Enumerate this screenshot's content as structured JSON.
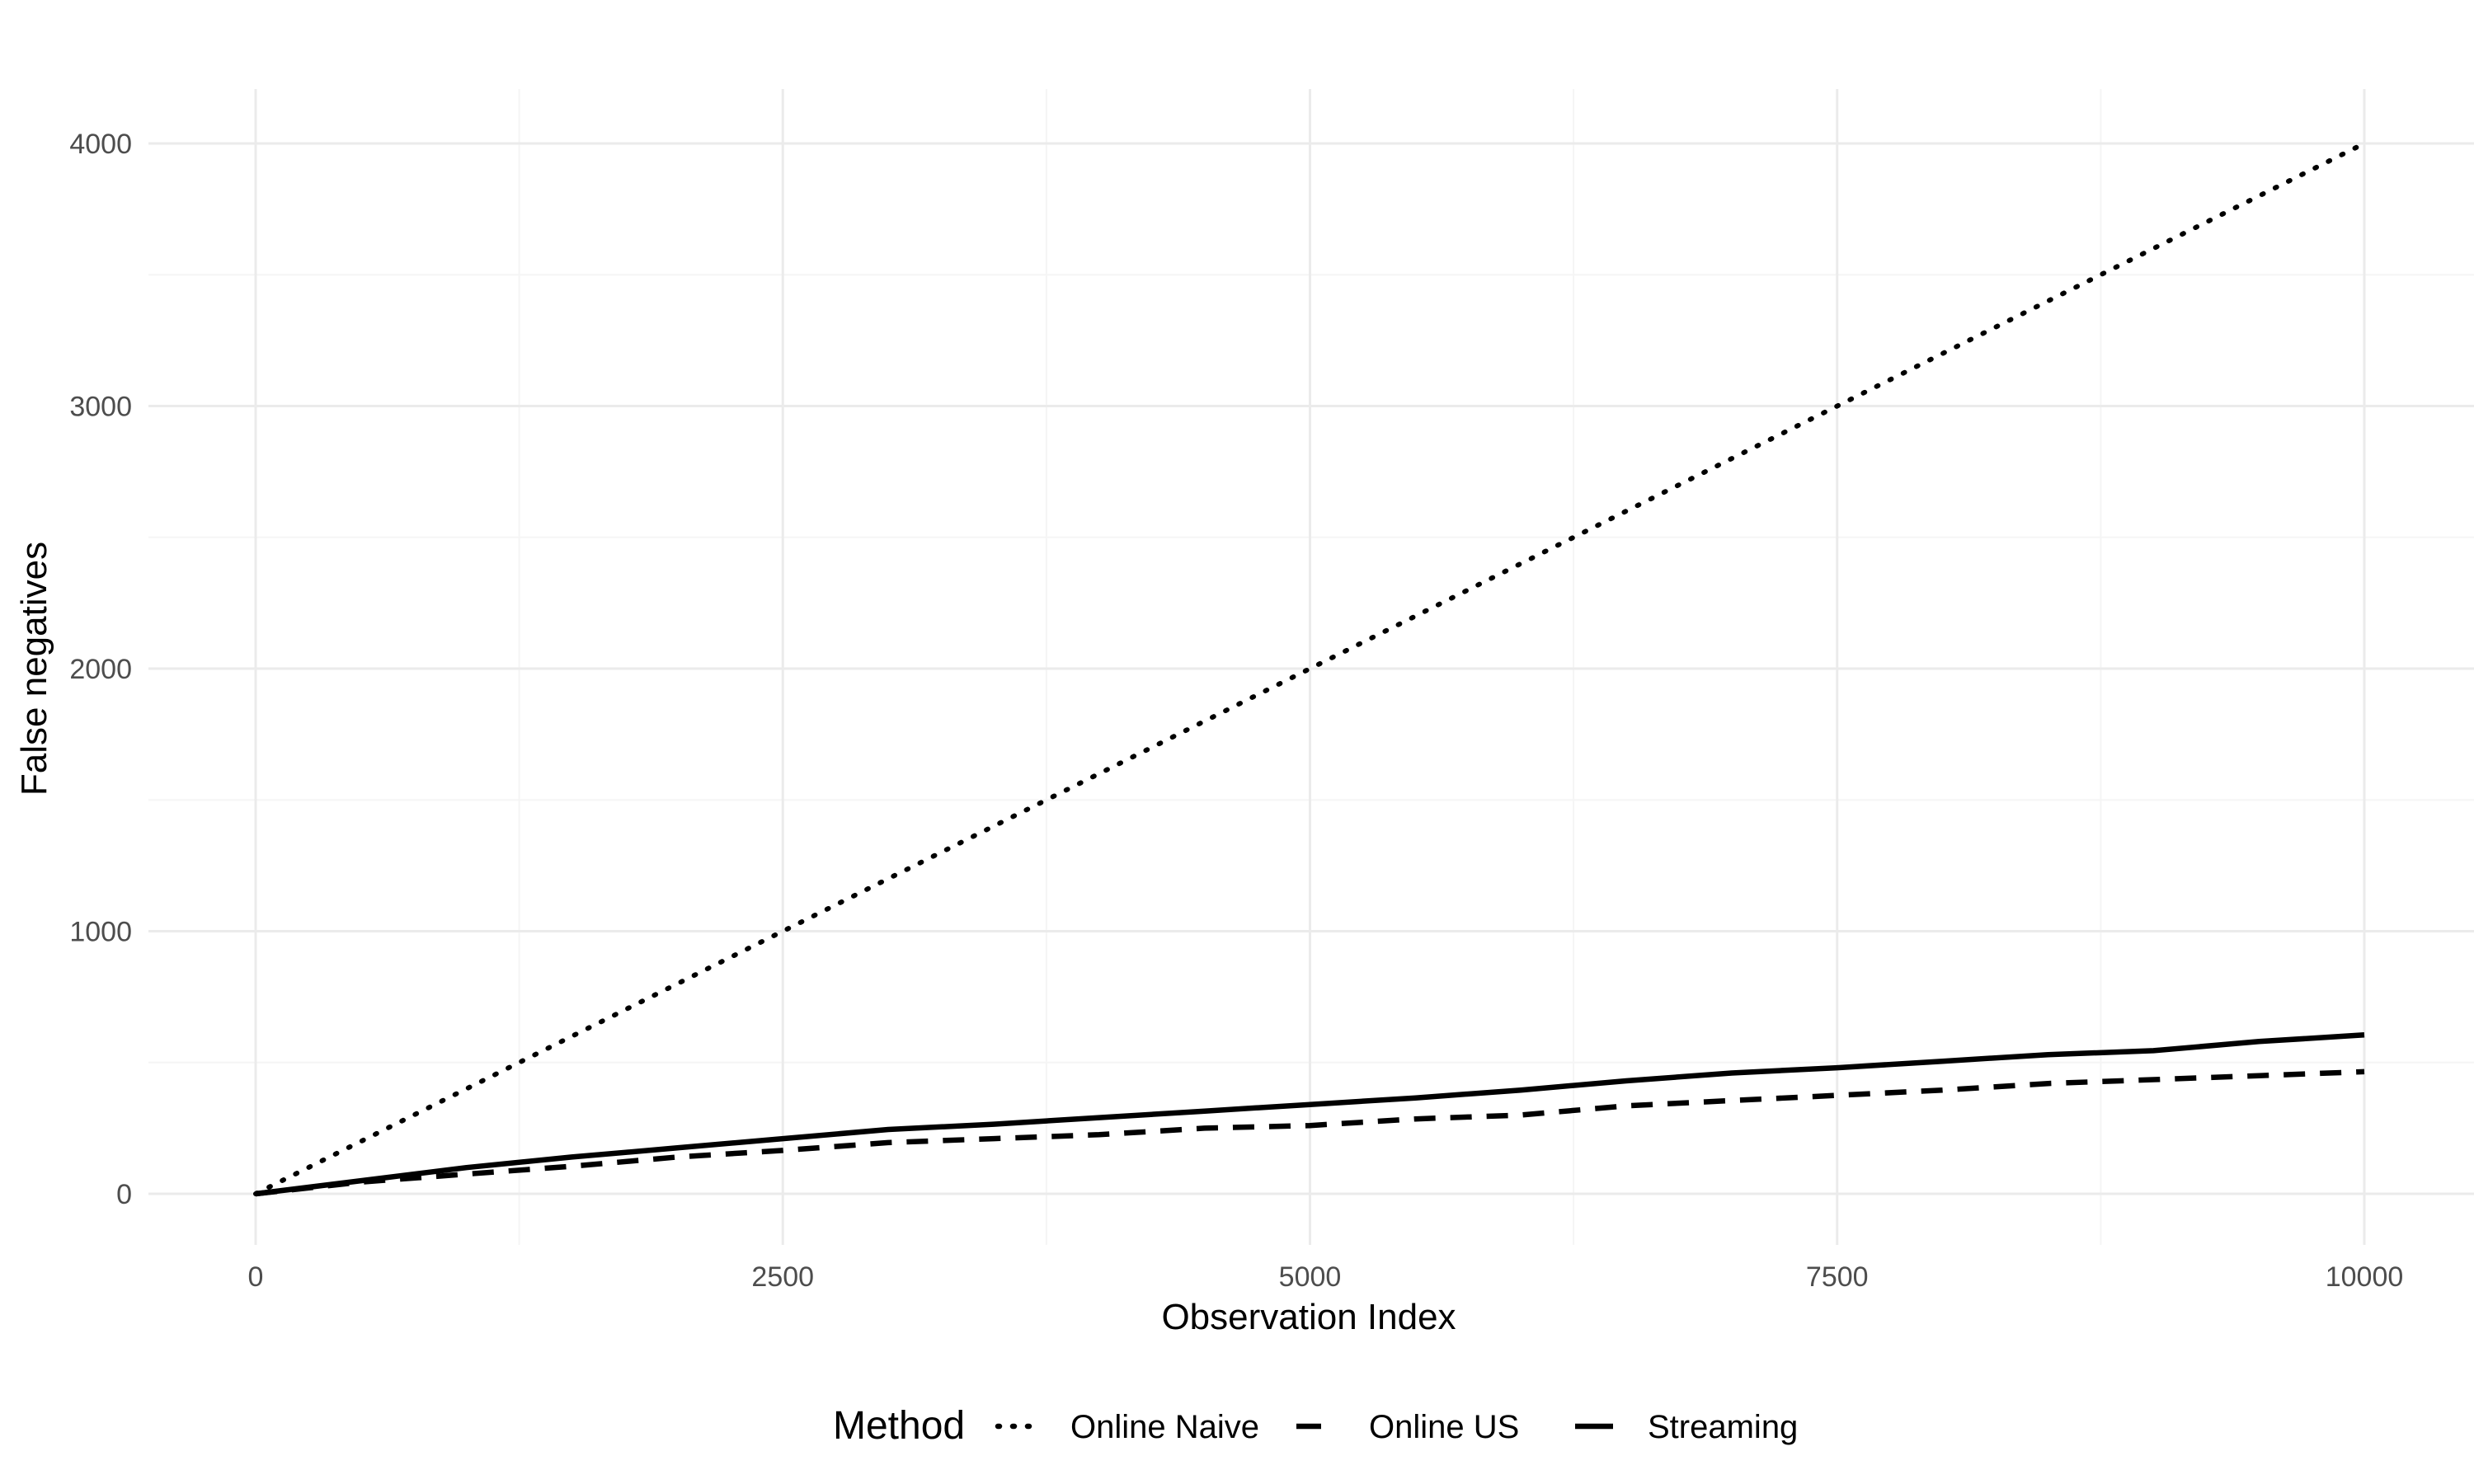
{
  "chart_data": {
    "type": "line",
    "title": "",
    "xlabel": "Observation Index",
    "ylabel": "False negatives",
    "xlim": [
      -1000,
      10500
    ],
    "ylim": [
      -200,
      4200
    ],
    "x_ticks": [
      0,
      2500,
      5000,
      7500,
      10000
    ],
    "x_tick_labels": [
      "0",
      "2500",
      "5000",
      "7500",
      "10000"
    ],
    "y_ticks": [
      0,
      1000,
      2000,
      3000,
      4000
    ],
    "y_tick_labels": [
      "0",
      "1000",
      "2000",
      "3000",
      "4000"
    ],
    "grid": true,
    "legend": {
      "title": "Method",
      "position": "bottom",
      "entries": [
        "Online Naive",
        "Online US",
        "Streaming"
      ]
    },
    "series": [
      {
        "name": "Online Naive",
        "linetype": "dotted",
        "color": "#000000",
        "x": [
          0,
          1000,
          2000,
          2500,
          3000,
          4000,
          5000,
          6000,
          7000,
          7500,
          8000,
          9000,
          10000
        ],
        "y": [
          0,
          400,
          800,
          1000,
          1200,
          1600,
          2000,
          2400,
          2800,
          3000,
          3200,
          3600,
          4000
        ]
      },
      {
        "name": "Online US",
        "linetype": "dashed",
        "color": "#000000",
        "x": [
          0,
          500,
          1000,
          1500,
          2000,
          2500,
          3000,
          3500,
          4000,
          4500,
          5000,
          5500,
          6000,
          6500,
          7000,
          7500,
          8000,
          8500,
          9000,
          9500,
          10000
        ],
        "y": [
          0,
          45,
          75,
          105,
          140,
          165,
          195,
          210,
          225,
          250,
          260,
          285,
          300,
          335,
          355,
          375,
          395,
          420,
          435,
          450,
          465
        ]
      },
      {
        "name": "Streaming",
        "linetype": "solid",
        "color": "#000000",
        "x": [
          0,
          500,
          1000,
          1500,
          2000,
          2500,
          3000,
          3500,
          4000,
          4500,
          5000,
          5500,
          6000,
          6500,
          7000,
          7500,
          8000,
          8500,
          9000,
          9500,
          10000
        ],
        "y": [
          0,
          50,
          100,
          140,
          175,
          210,
          245,
          265,
          290,
          315,
          340,
          365,
          395,
          430,
          460,
          480,
          505,
          530,
          545,
          580,
          605
        ]
      }
    ]
  },
  "colors": {
    "background": "#ffffff",
    "grid_major": "#ebebeb",
    "grid_minor": "#f5f5f5",
    "line": "#000000",
    "tick_text": "#4d4d4d"
  }
}
